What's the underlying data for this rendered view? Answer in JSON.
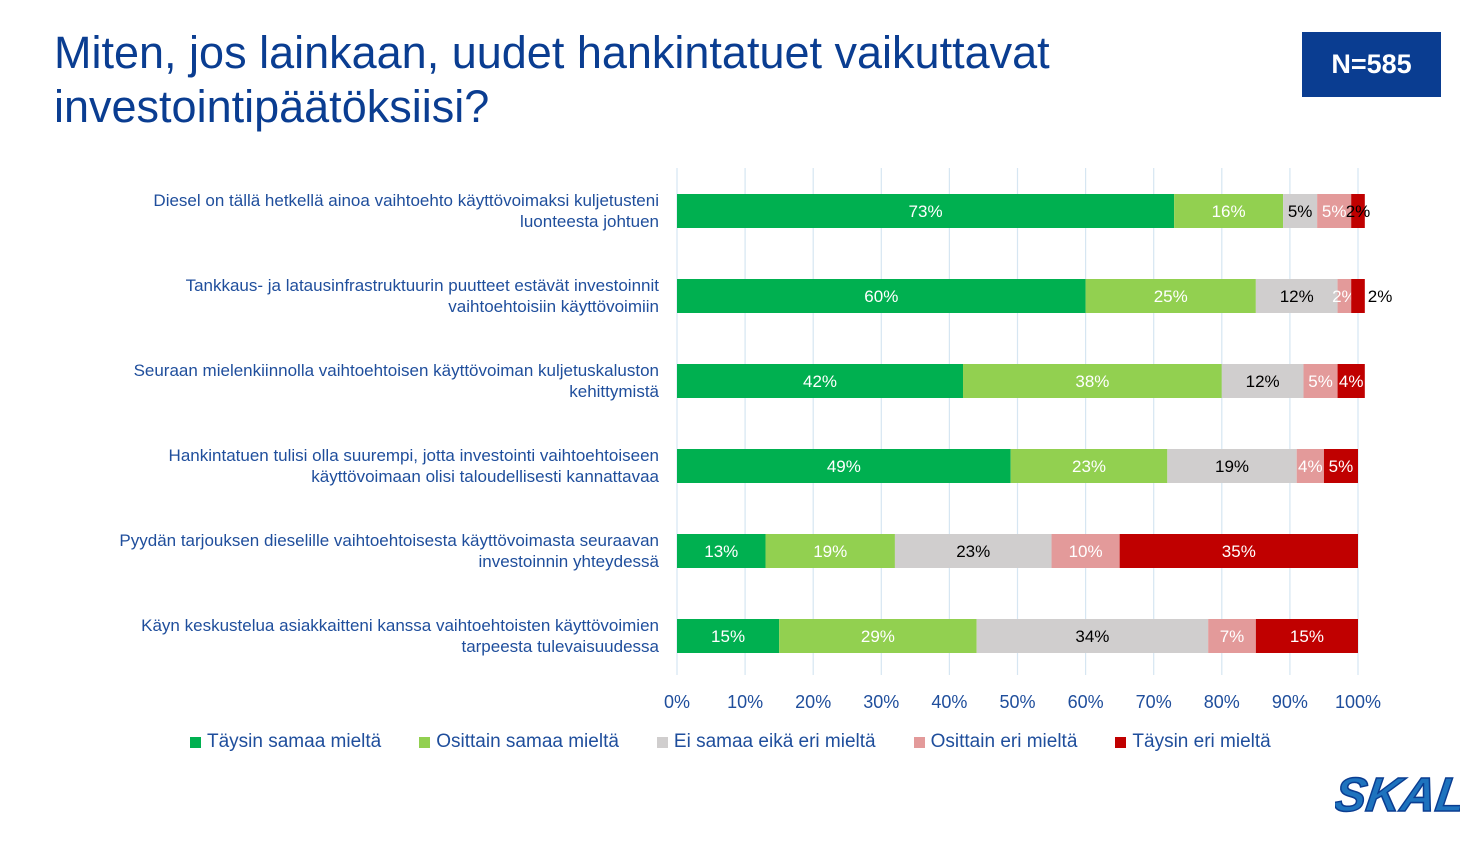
{
  "header": {
    "title": "Miten, jos lainkaan, uudet hankintatuet vaikuttavat investointipäätöksiisi?",
    "n_label": "N=585"
  },
  "logo": {
    "text": "SKAL",
    "color": "#1e73be"
  },
  "chart_data": {
    "type": "bar",
    "orientation": "horizontal",
    "stacked": true,
    "percent_stacked": true,
    "xlim": [
      0,
      100
    ],
    "x_ticks": [
      "0%",
      "10%",
      "20%",
      "30%",
      "40%",
      "50%",
      "60%",
      "70%",
      "80%",
      "90%",
      "100%"
    ],
    "grid": true,
    "legend_position": "bottom",
    "categories": [
      "Diesel on tällä hetkellä ainoa vaihtoehto käyttövoimaksi kuljetusteni luonteesta johtuen",
      "Tankkaus- ja latausinfrastruktuurin puutteet estävät investoinnit vaihtoehtoisiin käyttövoimiin",
      "Seuraan mielenkiinnolla vaihtoehtoisen käyttövoiman kuljetuskaluston kehittymistä",
      "Hankintatuen tulisi olla suurempi, jotta investointi vaihtoehtoiseen käyttövoimaan olisi taloudellisesti kannattavaa",
      "Pyydän tarjouksen dieselille vaihtoehtoisesta käyttövoimasta seuraavan investoinnin yhteydessä",
      "Käyn keskustelua asiakkaitteni kanssa vaihtoehtoisten käyttövoimien tarpeesta tulevaisuudessa"
    ],
    "category_lines": [
      [
        "Diesel on tällä hetkellä ainoa vaihtoehto käyttövoimaksi kuljetusteni",
        "luonteesta johtuen"
      ],
      [
        "Tankkaus- ja latausinfrastruktuurin puutteet estävät investoinnit",
        "vaihtoehtoisiin käyttövoimiin"
      ],
      [
        "Seuraan mielenkiinnolla vaihtoehtoisen käyttövoiman kuljetuskaluston",
        "kehittymistä"
      ],
      [
        "Hankintatuen tulisi olla suurempi, jotta investointi vaihtoehtoiseen",
        "käyttövoimaan olisi taloudellisesti kannattavaa"
      ],
      [
        "Pyydän tarjouksen dieselille vaihtoehtoisesta käyttövoimasta seuraavan",
        "investoinnin yhteydessä"
      ],
      [
        "Käyn keskustelua asiakkaitteni kanssa vaihtoehtoisten käyttövoimien",
        "tarpeesta tulevaisuudessa"
      ]
    ],
    "series": [
      {
        "name": "Täysin samaa mieltä",
        "color": "#00b050",
        "label_color": "#ffffff",
        "values": [
          73,
          60,
          42,
          49,
          13,
          15
        ]
      },
      {
        "name": "Osittain samaa mieltä",
        "color": "#92d050",
        "label_color": "#ffffff",
        "values": [
          16,
          25,
          38,
          23,
          19,
          29
        ]
      },
      {
        "name": "Ei samaa eikä eri mieltä",
        "color": "#d0cece",
        "label_color": "#000000",
        "values": [
          5,
          12,
          12,
          19,
          23,
          34
        ]
      },
      {
        "name": "Osittain eri mieltä",
        "color": "#e39a9a",
        "label_color": "#ffffff",
        "values": [
          5,
          2,
          5,
          4,
          10,
          7
        ]
      },
      {
        "name": "Täysin eri mieltä",
        "color": "#c00000",
        "label_color": "#ffffff",
        "values": [
          2,
          2,
          4,
          5,
          35,
          15
        ]
      }
    ],
    "data_labels": [
      [
        "73%",
        "16%",
        "5%",
        "5%",
        "2%"
      ],
      [
        "60%",
        "25%",
        "12%",
        "2%",
        "2%"
      ],
      [
        "42%",
        "38%",
        "12%",
        "5%",
        "4%"
      ],
      [
        "49%",
        "23%",
        "19%",
        "4%",
        "5%"
      ],
      [
        "13%",
        "19%",
        "23%",
        "10%",
        "35%"
      ],
      [
        "15%",
        "29%",
        "34%",
        "7%",
        "15%"
      ]
    ]
  }
}
